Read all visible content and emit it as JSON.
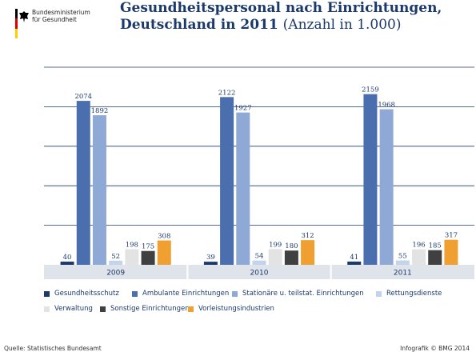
{
  "header": {
    "ministry": "Bundesministerium\nfür Gesundheit",
    "title_line1": "Gesundheitspersonal nach Einrichtungen,",
    "title_line2": "Deutschland in 2011",
    "title_sub": "(Anzahl in 1.000)"
  },
  "chart_data": {
    "type": "bar",
    "categories": [
      "2009",
      "2010",
      "2011"
    ],
    "series": [
      {
        "name": "Gesundheitsschutz",
        "color": "#1b3a6b",
        "values": [
          40,
          39,
          41
        ]
      },
      {
        "name": "Ambulante Einrichtungen",
        "color": "#4b6eae",
        "values": [
          2074,
          2122,
          2159
        ]
      },
      {
        "name": "Stationäre u. teilstat. Einrichtungen",
        "color": "#8ea9d6",
        "values": [
          1892,
          1927,
          1968
        ]
      },
      {
        "name": "Rettungsdienste",
        "color": "#c2d3ec",
        "values": [
          52,
          54,
          55
        ]
      },
      {
        "name": "Verwaltung",
        "color": "#e3e3e3",
        "values": [
          198,
          199,
          196
        ]
      },
      {
        "name": "Sonstige Einrichtungen",
        "color": "#404040",
        "values": [
          175,
          180,
          185
        ]
      },
      {
        "name": "Vorleistungsindustrien",
        "color": "#f0a030",
        "values": [
          308,
          312,
          317
        ]
      }
    ],
    "ylim": [
      0,
      2500
    ],
    "grid": true,
    "legend": "bottom"
  },
  "footer": {
    "source": "Quelle: Statistisches Bundesamt",
    "credit": "Infografik © BMG 2014"
  }
}
